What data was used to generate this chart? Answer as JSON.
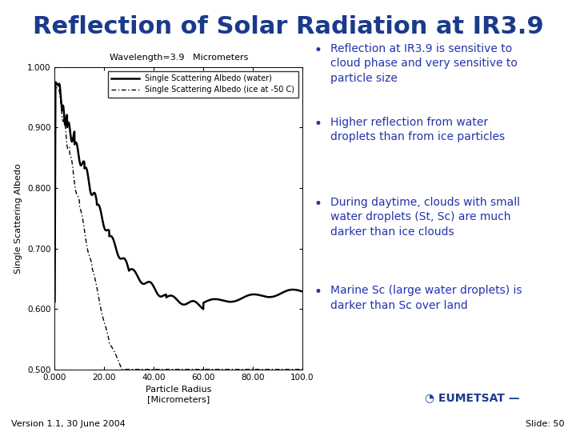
{
  "title": "Reflection of Solar Radiation at IR3.9",
  "title_color": "#1a3a8c",
  "title_fontsize": 22,
  "chart_title": "Wavelength=3.9   Micrometers",
  "chart_title_fontsize": 8,
  "xlabel": "Particle Radius\n[Micrometers]",
  "ylabel": "Single Scattering Albedo",
  "xlabel_fontsize": 8,
  "ylabel_fontsize": 8,
  "xlim": [
    0,
    100
  ],
  "ylim": [
    0.5,
    1.0
  ],
  "yticks": [
    0.5,
    0.6,
    0.7,
    0.8,
    0.9,
    1.0
  ],
  "ytick_labels": [
    "0.500",
    "0.600",
    "0.700",
    "0.800",
    "0.900",
    "1.000"
  ],
  "xticks": [
    0.0,
    20.0,
    40.0,
    60.0,
    80.0,
    100.0
  ],
  "xtick_labels": [
    "0.000",
    "20.00",
    "40.00",
    "60.00",
    "80.00",
    "100.0"
  ],
  "legend_water": "Single Scattering Albedo (water)",
  "legend_ice": "Single Scattering Albedo (ice at -50 C)",
  "bullet_color": "#2233aa",
  "bullet_fontsize": 10,
  "bullets": [
    "Reflection at IR3.9 is sensitive to\ncloud phase and very sensitive to\nparticle size",
    "Higher reflection from water\ndroplets than from ice particles",
    "During daytime, clouds with small\nwater droplets (St, Sc) are much\ndarker than ice clouds",
    "Marine Sc (large water droplets) is\ndarker than Sc over land"
  ],
  "footer_text": "Version 1.1, 30 June 2004",
  "slide_text": "Slide: 50",
  "bg_color": "#ffffff",
  "plot_bg_color": "#ffffff",
  "axis_color": "#000000",
  "footer_bar_color": "#2244aa",
  "footer_bar_height": 0.055
}
